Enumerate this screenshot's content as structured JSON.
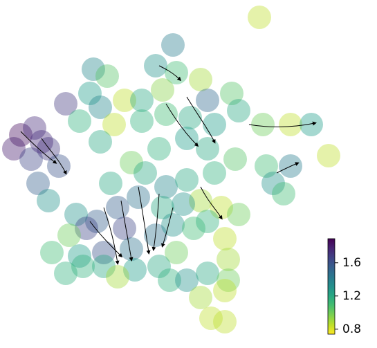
{
  "chart_data": {
    "type": "scatter",
    "x": [
      30,
      50,
      20,
      45,
      70,
      85,
      60,
      95,
      55,
      70,
      375,
      250,
      135,
      155,
      225,
      255,
      290,
      130,
      145,
      180,
      205,
      235,
      300,
      335,
      345,
      115,
      165,
      145,
      205,
      240,
      275,
      310,
      380,
      420,
      450,
      475,
      420,
      385,
      395,
      410,
      340,
      300,
      270,
      230,
      190,
      160,
      210,
      240,
      270,
      310,
      290,
      320,
      345,
      265,
      235,
      200,
      170,
      180,
      140,
      110,
      125,
      100,
      75,
      115,
      150,
      190,
      225,
      250,
      280,
      300,
      325,
      330,
      255,
      230,
      195,
      150,
      120,
      95,
      170,
      245,
      270,
      300,
      330,
      290,
      325,
      305,
      325
    ],
    "y": [
      308,
      318,
      288,
      273,
      288,
      263,
      298,
      353,
      238,
      213,
      478,
      438,
      403,
      393,
      408,
      398,
      388,
      368,
      348,
      358,
      358,
      373,
      358,
      368,
      343,
      328,
      323,
      298,
      328,
      338,
      333,
      323,
      323,
      323,
      323,
      278,
      263,
      263,
      238,
      223,
      273,
      288,
      303,
      288,
      268,
      238,
      253,
      233,
      243,
      253,
      213,
      203,
      193,
      208,
      203,
      218,
      203,
      173,
      183,
      193,
      173,
      163,
      138,
      133,
      138,
      143,
      163,
      178,
      173,
      183,
      158,
      128,
      138,
      118,
      113,
      118,
      118,
      108,
      103,
      98,
      98,
      108,
      98,
      73,
      83,
      43,
      38
    ],
    "values": [
      1.85,
      1.75,
      1.8,
      1.65,
      1.7,
      1.6,
      1.75,
      1.7,
      1.55,
      1.3,
      0.85,
      1.4,
      1.35,
      1.05,
      1.3,
      1.1,
      0.9,
      1.25,
      1.35,
      0.85,
      1.2,
      0.95,
      1.5,
      1.05,
      1.2,
      1.15,
      0.85,
      1.2,
      1.15,
      1.1,
      1.2,
      1.25,
      1.0,
      0.85,
      1.25,
      0.85,
      1.4,
      1.1,
      1.3,
      1.1,
      1.05,
      1.2,
      1.25,
      1.15,
      1.0,
      1.2,
      1.2,
      1.35,
      1.2,
      1.15,
      0.9,
      0.85,
      1.0,
      1.3,
      1.2,
      1.45,
      1.55,
      1.65,
      1.55,
      1.3,
      1.65,
      1.0,
      1.1,
      1.25,
      1.6,
      1.45,
      1.45,
      1.3,
      1.1,
      1.15,
      0.85,
      0.9,
      1.0,
      1.2,
      1.25,
      1.2,
      1.15,
      1.15,
      0.9,
      1.15,
      1.3,
      1.2,
      1.0,
      0.9,
      0.85,
      0.85,
      0.85
    ],
    "xlim": [
      0,
      545
    ],
    "ylim": [
      0,
      503
    ],
    "colormap": "viridis_r",
    "clim": [
      0.74,
      1.89
    ],
    "cticks": [
      0.8,
      1.2,
      1.6
    ]
  }
}
